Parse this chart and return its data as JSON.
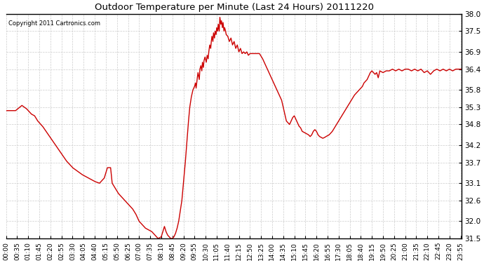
{
  "title": "Outdoor Temperature per Minute (Last 24 Hours) 20111220",
  "copyright_text": "Copyright 2011 Cartronics.com",
  "line_color": "#cc0000",
  "background_color": "#ffffff",
  "grid_color": "#cccccc",
  "ylim": [
    31.5,
    38.0
  ],
  "yticks": [
    31.5,
    32.0,
    32.6,
    33.1,
    33.7,
    34.2,
    34.8,
    35.3,
    35.8,
    36.4,
    36.9,
    37.5,
    38.0
  ],
  "xtick_labels": [
    "00:00",
    "00:35",
    "01:10",
    "01:45",
    "02:20",
    "02:55",
    "03:30",
    "04:05",
    "04:40",
    "05:15",
    "05:50",
    "06:25",
    "07:00",
    "07:35",
    "08:10",
    "08:45",
    "09:20",
    "09:55",
    "10:30",
    "11:05",
    "11:40",
    "12:15",
    "12:50",
    "13:25",
    "14:00",
    "14:35",
    "15:10",
    "15:45",
    "16:20",
    "16:55",
    "17:30",
    "18:05",
    "18:40",
    "19:15",
    "19:50",
    "20:25",
    "21:00",
    "21:35",
    "22:10",
    "22:45",
    "23:20",
    "23:55"
  ],
  "keypoints_minutes": [
    [
      0,
      35.2
    ],
    [
      30,
      35.2
    ],
    [
      50,
      35.35
    ],
    [
      65,
      35.25
    ],
    [
      80,
      35.1
    ],
    [
      90,
      35.05
    ],
    [
      100,
      34.9
    ],
    [
      115,
      34.75
    ],
    [
      130,
      34.55
    ],
    [
      145,
      34.35
    ],
    [
      160,
      34.15
    ],
    [
      175,
      33.95
    ],
    [
      190,
      33.75
    ],
    [
      200,
      33.65
    ],
    [
      210,
      33.55
    ],
    [
      225,
      33.45
    ],
    [
      240,
      33.35
    ],
    [
      260,
      33.25
    ],
    [
      280,
      33.15
    ],
    [
      295,
      33.1
    ],
    [
      310,
      33.25
    ],
    [
      320,
      33.55
    ],
    [
      330,
      33.55
    ],
    [
      335,
      33.1
    ],
    [
      345,
      32.95
    ],
    [
      355,
      32.8
    ],
    [
      360,
      32.75
    ],
    [
      370,
      32.65
    ],
    [
      380,
      32.55
    ],
    [
      390,
      32.45
    ],
    [
      400,
      32.35
    ],
    [
      410,
      32.2
    ],
    [
      415,
      32.1
    ],
    [
      420,
      32.0
    ],
    [
      430,
      31.9
    ],
    [
      440,
      31.8
    ],
    [
      450,
      31.75
    ],
    [
      460,
      31.7
    ],
    [
      470,
      31.6
    ],
    [
      475,
      31.55
    ],
    [
      480,
      31.5
    ],
    [
      490,
      31.55
    ],
    [
      495,
      31.7
    ],
    [
      500,
      31.85
    ],
    [
      505,
      31.7
    ],
    [
      510,
      31.6
    ],
    [
      515,
      31.55
    ],
    [
      520,
      31.5
    ],
    [
      525,
      31.5
    ],
    [
      530,
      31.55
    ],
    [
      535,
      31.65
    ],
    [
      540,
      31.8
    ],
    [
      545,
      32.0
    ],
    [
      550,
      32.3
    ],
    [
      555,
      32.6
    ],
    [
      560,
      33.1
    ],
    [
      565,
      33.6
    ],
    [
      570,
      34.2
    ],
    [
      575,
      34.8
    ],
    [
      580,
      35.3
    ],
    [
      585,
      35.6
    ],
    [
      590,
      35.8
    ],
    [
      595,
      35.9
    ],
    [
      598,
      36.0
    ],
    [
      600,
      35.85
    ],
    [
      603,
      36.1
    ],
    [
      606,
      36.3
    ],
    [
      610,
      36.1
    ],
    [
      612,
      36.4
    ],
    [
      615,
      36.5
    ],
    [
      618,
      36.35
    ],
    [
      620,
      36.6
    ],
    [
      623,
      36.45
    ],
    [
      625,
      36.65
    ],
    [
      628,
      36.75
    ],
    [
      632,
      36.6
    ],
    [
      635,
      36.8
    ],
    [
      638,
      36.7
    ],
    [
      640,
      36.9
    ],
    [
      643,
      37.1
    ],
    [
      646,
      37.0
    ],
    [
      648,
      37.2
    ],
    [
      650,
      37.35
    ],
    [
      653,
      37.2
    ],
    [
      655,
      37.45
    ],
    [
      658,
      37.3
    ],
    [
      660,
      37.5
    ],
    [
      663,
      37.4
    ],
    [
      665,
      37.6
    ],
    [
      668,
      37.5
    ],
    [
      670,
      37.7
    ],
    [
      673,
      37.5
    ],
    [
      675,
      37.9
    ],
    [
      678,
      37.7
    ],
    [
      680,
      37.8
    ],
    [
      683,
      37.6
    ],
    [
      685,
      37.75
    ],
    [
      688,
      37.5
    ],
    [
      690,
      37.6
    ],
    [
      693,
      37.5
    ],
    [
      695,
      37.4
    ],
    [
      700,
      37.35
    ],
    [
      705,
      37.2
    ],
    [
      710,
      37.3
    ],
    [
      715,
      37.1
    ],
    [
      720,
      37.2
    ],
    [
      725,
      37.0
    ],
    [
      730,
      37.1
    ],
    [
      735,
      36.9
    ],
    [
      740,
      37.0
    ],
    [
      745,
      36.85
    ],
    [
      750,
      36.9
    ],
    [
      755,
      36.85
    ],
    [
      760,
      36.9
    ],
    [
      765,
      36.8
    ],
    [
      770,
      36.85
    ],
    [
      780,
      36.85
    ],
    [
      790,
      36.85
    ],
    [
      800,
      36.85
    ],
    [
      810,
      36.7
    ],
    [
      820,
      36.5
    ],
    [
      830,
      36.3
    ],
    [
      840,
      36.1
    ],
    [
      850,
      35.9
    ],
    [
      860,
      35.7
    ],
    [
      870,
      35.5
    ],
    [
      875,
      35.3
    ],
    [
      880,
      35.1
    ],
    [
      885,
      34.9
    ],
    [
      890,
      34.85
    ],
    [
      895,
      34.8
    ],
    [
      900,
      34.9
    ],
    [
      905,
      35.0
    ],
    [
      910,
      35.05
    ],
    [
      915,
      34.95
    ],
    [
      920,
      34.85
    ],
    [
      925,
      34.75
    ],
    [
      930,
      34.7
    ],
    [
      935,
      34.6
    ],
    [
      945,
      34.55
    ],
    [
      955,
      34.5
    ],
    [
      960,
      34.45
    ],
    [
      965,
      34.5
    ],
    [
      970,
      34.6
    ],
    [
      975,
      34.65
    ],
    [
      980,
      34.6
    ],
    [
      985,
      34.5
    ],
    [
      990,
      34.45
    ],
    [
      1000,
      34.4
    ],
    [
      1005,
      34.42
    ],
    [
      1010,
      34.45
    ],
    [
      1020,
      34.5
    ],
    [
      1030,
      34.6
    ],
    [
      1040,
      34.75
    ],
    [
      1050,
      34.9
    ],
    [
      1060,
      35.05
    ],
    [
      1070,
      35.2
    ],
    [
      1080,
      35.35
    ],
    [
      1090,
      35.5
    ],
    [
      1100,
      35.65
    ],
    [
      1110,
      35.75
    ],
    [
      1115,
      35.8
    ],
    [
      1125,
      35.9
    ],
    [
      1130,
      36.0
    ],
    [
      1140,
      36.1
    ],
    [
      1145,
      36.2
    ],
    [
      1150,
      36.3
    ],
    [
      1155,
      36.35
    ],
    [
      1160,
      36.3
    ],
    [
      1165,
      36.25
    ],
    [
      1170,
      36.3
    ],
    [
      1175,
      36.15
    ],
    [
      1180,
      36.35
    ],
    [
      1190,
      36.3
    ],
    [
      1200,
      36.35
    ],
    [
      1210,
      36.35
    ],
    [
      1220,
      36.4
    ],
    [
      1230,
      36.35
    ],
    [
      1240,
      36.4
    ],
    [
      1250,
      36.35
    ],
    [
      1260,
      36.4
    ],
    [
      1270,
      36.4
    ],
    [
      1280,
      36.35
    ],
    [
      1290,
      36.4
    ],
    [
      1300,
      36.35
    ],
    [
      1310,
      36.4
    ],
    [
      1320,
      36.3
    ],
    [
      1330,
      36.35
    ],
    [
      1340,
      36.25
    ],
    [
      1350,
      36.35
    ],
    [
      1360,
      36.4
    ],
    [
      1370,
      36.35
    ],
    [
      1380,
      36.4
    ],
    [
      1390,
      36.35
    ],
    [
      1400,
      36.4
    ],
    [
      1410,
      36.35
    ],
    [
      1420,
      36.4
    ],
    [
      1430,
      36.4
    ],
    [
      1439,
      36.4
    ]
  ]
}
